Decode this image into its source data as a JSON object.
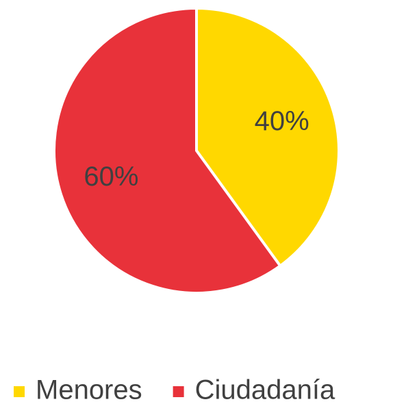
{
  "chart_data": {
    "type": "pie",
    "categories": [
      "Menores",
      "Ciudadanía"
    ],
    "values": [
      40,
      60
    ],
    "value_labels": [
      "40%",
      "60%"
    ],
    "colors": [
      "#ffd800",
      "#e8323a"
    ],
    "legend": "bottom"
  }
}
